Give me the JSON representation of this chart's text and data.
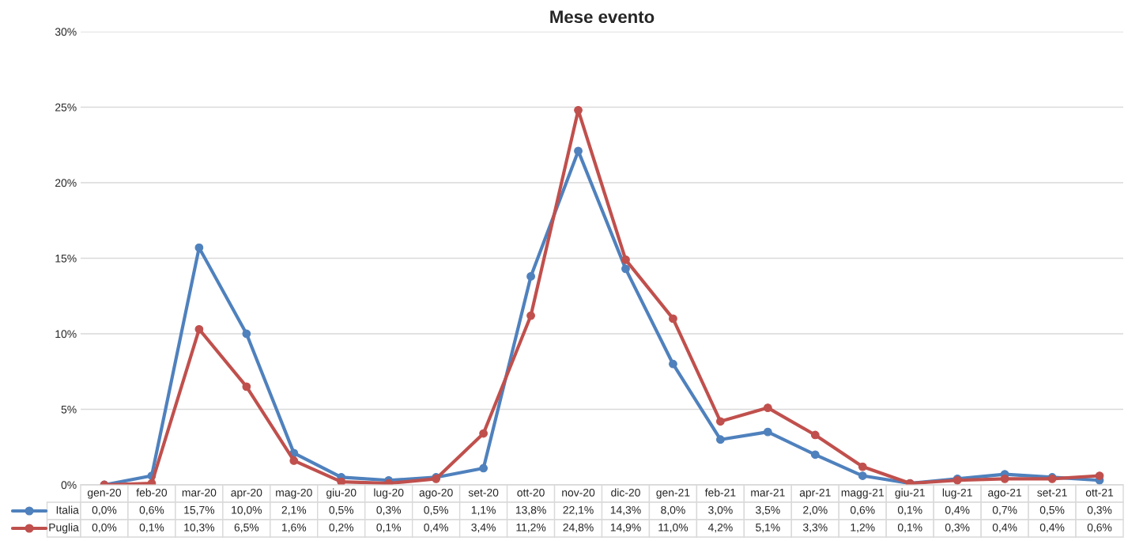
{
  "chart_data": {
    "type": "line",
    "title": "Mese evento",
    "categories": [
      "gen-20",
      "feb-20",
      "mar-20",
      "apr-20",
      "mag-20",
      "giu-20",
      "lug-20",
      "ago-20",
      "set-20",
      "ott-20",
      "nov-20",
      "dic-20",
      "gen-21",
      "feb-21",
      "mar-21",
      "apr-21",
      "magg-21",
      "giu-21",
      "lug-21",
      "ago-21",
      "set-21",
      "ott-21"
    ],
    "series": [
      {
        "name": "Italia",
        "color": "#4f81bd",
        "values": [
          0.0,
          0.6,
          15.7,
          10.0,
          2.1,
          0.5,
          0.3,
          0.5,
          1.1,
          13.8,
          22.1,
          14.3,
          8.0,
          3.0,
          3.5,
          2.0,
          0.6,
          0.1,
          0.4,
          0.7,
          0.5,
          0.3
        ],
        "value_labels": [
          "0,0%",
          "0,6%",
          "15,7%",
          "10,0%",
          "2,1%",
          "0,5%",
          "0,3%",
          "0,5%",
          "1,1%",
          "13,8%",
          "22,1%",
          "14,3%",
          "8,0%",
          "3,0%",
          "3,5%",
          "2,0%",
          "0,6%",
          "0,1%",
          "0,4%",
          "0,7%",
          "0,5%",
          "0,3%"
        ]
      },
      {
        "name": "Puglia",
        "color": "#c0504d",
        "values": [
          0.0,
          0.1,
          10.3,
          6.5,
          1.6,
          0.2,
          0.1,
          0.4,
          3.4,
          11.2,
          24.8,
          14.9,
          11.0,
          4.2,
          5.1,
          3.3,
          1.2,
          0.1,
          0.3,
          0.4,
          0.4,
          0.6
        ],
        "value_labels": [
          "0,0%",
          "0,1%",
          "10,3%",
          "6,5%",
          "1,6%",
          "0,2%",
          "0,1%",
          "0,4%",
          "3,4%",
          "11,2%",
          "24,8%",
          "14,9%",
          "11,0%",
          "4,2%",
          "5,1%",
          "3,3%",
          "1,2%",
          "0,1%",
          "0,3%",
          "0,4%",
          "0,4%",
          "0,6%"
        ]
      }
    ],
    "ylim": [
      0,
      30
    ],
    "yticks": [
      {
        "value": 0,
        "label": "0%"
      },
      {
        "value": 5,
        "label": "5%"
      },
      {
        "value": 10,
        "label": "10%"
      },
      {
        "value": 15,
        "label": "15%"
      },
      {
        "value": 20,
        "label": "20%"
      },
      {
        "value": 25,
        "label": "25%"
      },
      {
        "value": 30,
        "label": "30%"
      }
    ],
    "grid": "y",
    "legend": "bottom left",
    "marker": "circle",
    "line_style": "solid"
  }
}
